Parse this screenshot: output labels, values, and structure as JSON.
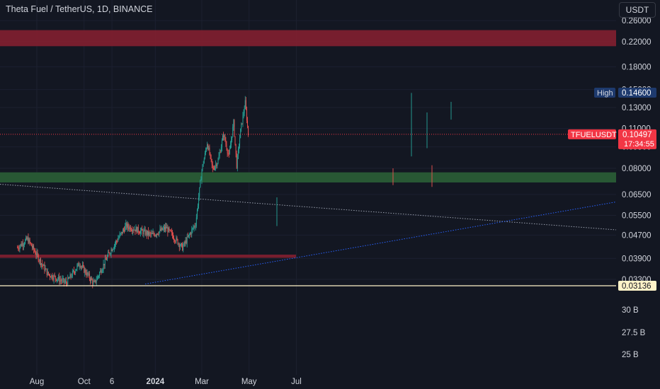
{
  "header": {
    "symbol_title": "Theta Fuel / TetherUS, 1D, BINANCE",
    "currency": "USDT"
  },
  "colors": {
    "background": "#131722",
    "up": "#26a69a",
    "down": "#ef5350",
    "resistance_zone": "#802030",
    "support_zone": "#2a5e36",
    "text": "#d1d4dc",
    "high_label_bg": "#1e3a6e",
    "last_price_bg": "#f23645",
    "low_label_bg": "#fff3c8"
  },
  "chart_data": {
    "type": "candlestick",
    "symbol": "TFUELUSDT",
    "scale": "log",
    "price_ticks": [
      "0.26000",
      "0.22000",
      "0.18000",
      "0.15000",
      "0.13000",
      "0.11000",
      "0.09500",
      "0.08000",
      "0.06500",
      "0.05500",
      "0.04700",
      "0.03900",
      "0.03300"
    ],
    "volume_ticks": [
      "30 B",
      "27.5 B",
      "25 B"
    ],
    "x_ticks": [
      "Aug",
      "Oct",
      "6",
      "2024",
      "Mar",
      "May",
      "Jul"
    ],
    "last_price": {
      "symbol": "TFUELUSDT",
      "price": "0.10497",
      "countdown": "17:34:55"
    },
    "high": {
      "label": "High",
      "price": "0.14600"
    },
    "low": {
      "price": "0.03136"
    },
    "zones": [
      {
        "name": "resistance-top",
        "from": 0.212,
        "to": 0.241
      },
      {
        "name": "resistance-lower",
        "from": 0.0392,
        "to": 0.0402
      },
      {
        "name": "support",
        "from": 0.0715,
        "to": 0.0775
      }
    ],
    "key_points": [
      {
        "date": "2023-07-07",
        "close": 0.0425
      },
      {
        "date": "2023-07-20",
        "close": 0.0455
      },
      {
        "date": "2023-08-15",
        "close": 0.0345
      },
      {
        "date": "2023-09-08",
        "close": 0.0321
      },
      {
        "date": "2023-09-25",
        "close": 0.0375
      },
      {
        "date": "2023-10-14",
        "close": 0.0318
      },
      {
        "date": "2023-11-03",
        "close": 0.041
      },
      {
        "date": "2023-11-24",
        "close": 0.0505
      },
      {
        "date": "2023-12-28",
        "close": 0.047
      },
      {
        "date": "2024-01-15",
        "close": 0.0498
      },
      {
        "date": "2024-02-05",
        "close": 0.0425
      },
      {
        "date": "2024-02-22",
        "close": 0.0515
      },
      {
        "date": "2024-03-01",
        "close": 0.079
      },
      {
        "date": "2024-03-08",
        "close": 0.098
      },
      {
        "date": "2024-03-15",
        "close": 0.0795
      },
      {
        "date": "2024-03-22",
        "close": 0.085
      },
      {
        "date": "2024-03-29",
        "close": 0.105
      },
      {
        "date": "2024-04-05",
        "close": 0.088
      },
      {
        "date": "2024-04-11",
        "close": 0.115
      },
      {
        "date": "2024-04-15",
        "close": 0.082
      },
      {
        "date": "2024-04-20",
        "close": 0.108
      },
      {
        "date": "2024-04-26",
        "close": 0.135
      },
      {
        "date": "2024-04-30",
        "close": 0.105
      }
    ]
  }
}
